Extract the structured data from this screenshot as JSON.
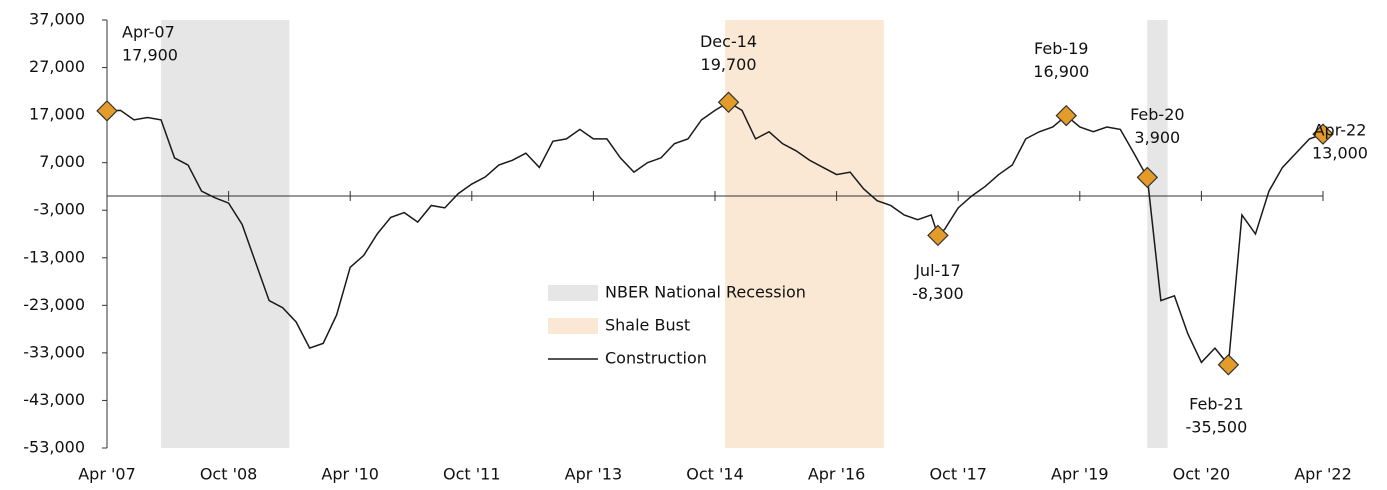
{
  "chart_data": {
    "type": "line",
    "series": [
      {
        "name": "Construction",
        "color": "#1a1a1a",
        "x": [
          2007.25,
          2007.417,
          2007.583,
          2007.75,
          2007.917,
          2008.083,
          2008.25,
          2008.417,
          2008.583,
          2008.75,
          2008.917,
          2009.083,
          2009.25,
          2009.417,
          2009.583,
          2009.75,
          2009.917,
          2010.083,
          2010.25,
          2010.417,
          2010.583,
          2010.75,
          2010.917,
          2011.083,
          2011.25,
          2011.417,
          2011.583,
          2011.75,
          2011.917,
          2012.083,
          2012.25,
          2012.417,
          2012.583,
          2012.75,
          2012.917,
          2013.083,
          2013.25,
          2013.417,
          2013.583,
          2013.75,
          2013.917,
          2014.083,
          2014.25,
          2014.417,
          2014.583,
          2014.75,
          2014.917,
          2015.083,
          2015.25,
          2015.417,
          2015.583,
          2015.75,
          2015.917,
          2016.083,
          2016.25,
          2016.417,
          2016.583,
          2016.75,
          2016.917,
          2017.083,
          2017.25,
          2017.417,
          2017.5,
          2017.583,
          2017.75,
          2017.917,
          2018.083,
          2018.25,
          2018.417,
          2018.583,
          2018.75,
          2018.917,
          2019.083,
          2019.25,
          2019.417,
          2019.583,
          2019.75,
          2019.917,
          2020.083,
          2020.25,
          2020.417,
          2020.583,
          2020.75,
          2020.917,
          2021.083,
          2021.25,
          2021.417,
          2021.583,
          2021.75,
          2021.917,
          2022.083,
          2022.25
        ],
        "values": [
          17900,
          18000,
          16000,
          16500,
          16000,
          8000,
          6500,
          1000,
          -400,
          -1500,
          -6000,
          -14000,
          -22000,
          -23500,
          -26500,
          -32000,
          -31000,
          -25000,
          -15000,
          -12500,
          -8000,
          -4500,
          -3500,
          -5500,
          -2000,
          -2500,
          500,
          2500,
          4000,
          6500,
          7500,
          9000,
          6000,
          11500,
          12000,
          14000,
          12000,
          12000,
          8000,
          5000,
          7000,
          8000,
          11000,
          12000,
          16000,
          18000,
          19700,
          18000,
          12000,
          13500,
          11000,
          9500,
          7500,
          6000,
          4500,
          5000,
          1500,
          -1000,
          -2000,
          -4000,
          -5000,
          -4000,
          -8300,
          -7000,
          -2500,
          0,
          2000,
          4500,
          6500,
          12000,
          13500,
          14500,
          16900,
          14500,
          13500,
          14500,
          14000,
          9000,
          3900,
          -22000,
          -21000,
          -29000,
          -35000,
          -32000,
          -35500,
          -4000,
          -8000,
          1000,
          6000,
          9000,
          12000,
          13000
        ]
      }
    ],
    "shaded_regions": [
      {
        "name": "NBER National Recession",
        "color": "#e6e6e6",
        "ranges": [
          [
            2007.917,
            2009.5
          ],
          [
            2020.083,
            2020.333
          ]
        ]
      },
      {
        "name": "Shale Bust",
        "color": "#fae8d4",
        "ranges": [
          [
            2014.875,
            2016.833
          ]
        ]
      }
    ],
    "annotations": [
      {
        "x": 2007.25,
        "y": 17900,
        "label": "Apr-07",
        "value_label": "17,900"
      },
      {
        "x": 2014.917,
        "y": 19700,
        "label": "Dec-14",
        "value_label": "19,700"
      },
      {
        "x": 2017.5,
        "y": -8300,
        "label": "Jul-17",
        "value_label": "-8,300"
      },
      {
        "x": 2019.083,
        "y": 16900,
        "label": "Feb-19",
        "value_label": "16,900"
      },
      {
        "x": 2020.083,
        "y": 3900,
        "label": "Feb-20",
        "value_label": "3,900"
      },
      {
        "x": 2021.083,
        "y": -35500,
        "label": "Feb-21",
        "value_label": "-35,500"
      },
      {
        "x": 2022.25,
        "y": 13000,
        "label": "Apr-22",
        "value_label": "13,000"
      }
    ],
    "marker_color": "#e39b2a",
    "xlim": [
      2007.25,
      2022.25
    ],
    "xticks": [
      {
        "value": 2007.25,
        "label": "Apr '07"
      },
      {
        "value": 2008.75,
        "label": "Oct '08"
      },
      {
        "value": 2010.25,
        "label": "Apr '10"
      },
      {
        "value": 2011.75,
        "label": "Oct '11"
      },
      {
        "value": 2013.25,
        "label": "Apr '13"
      },
      {
        "value": 2014.75,
        "label": "Oct '14"
      },
      {
        "value": 2016.25,
        "label": "Apr '16"
      },
      {
        "value": 2017.75,
        "label": "Oct '17"
      },
      {
        "value": 2019.25,
        "label": "Apr '19"
      },
      {
        "value": 2020.75,
        "label": "Oct '20"
      },
      {
        "value": 2022.25,
        "label": "Apr '22"
      }
    ],
    "ylim": [
      -53000,
      37000
    ],
    "yticks": [
      {
        "value": 37000,
        "label": "37,000"
      },
      {
        "value": 27000,
        "label": "27,000"
      },
      {
        "value": 17000,
        "label": "17,000"
      },
      {
        "value": 7000,
        "label": "7,000"
      },
      {
        "value": -3000,
        "label": "-3,000"
      },
      {
        "value": -13000,
        "label": "-13,000"
      },
      {
        "value": -23000,
        "label": "-23,000"
      },
      {
        "value": -33000,
        "label": "-33,000"
      },
      {
        "value": -43000,
        "label": "-43,000"
      },
      {
        "value": -53000,
        "label": "-53,000"
      }
    ]
  }
}
